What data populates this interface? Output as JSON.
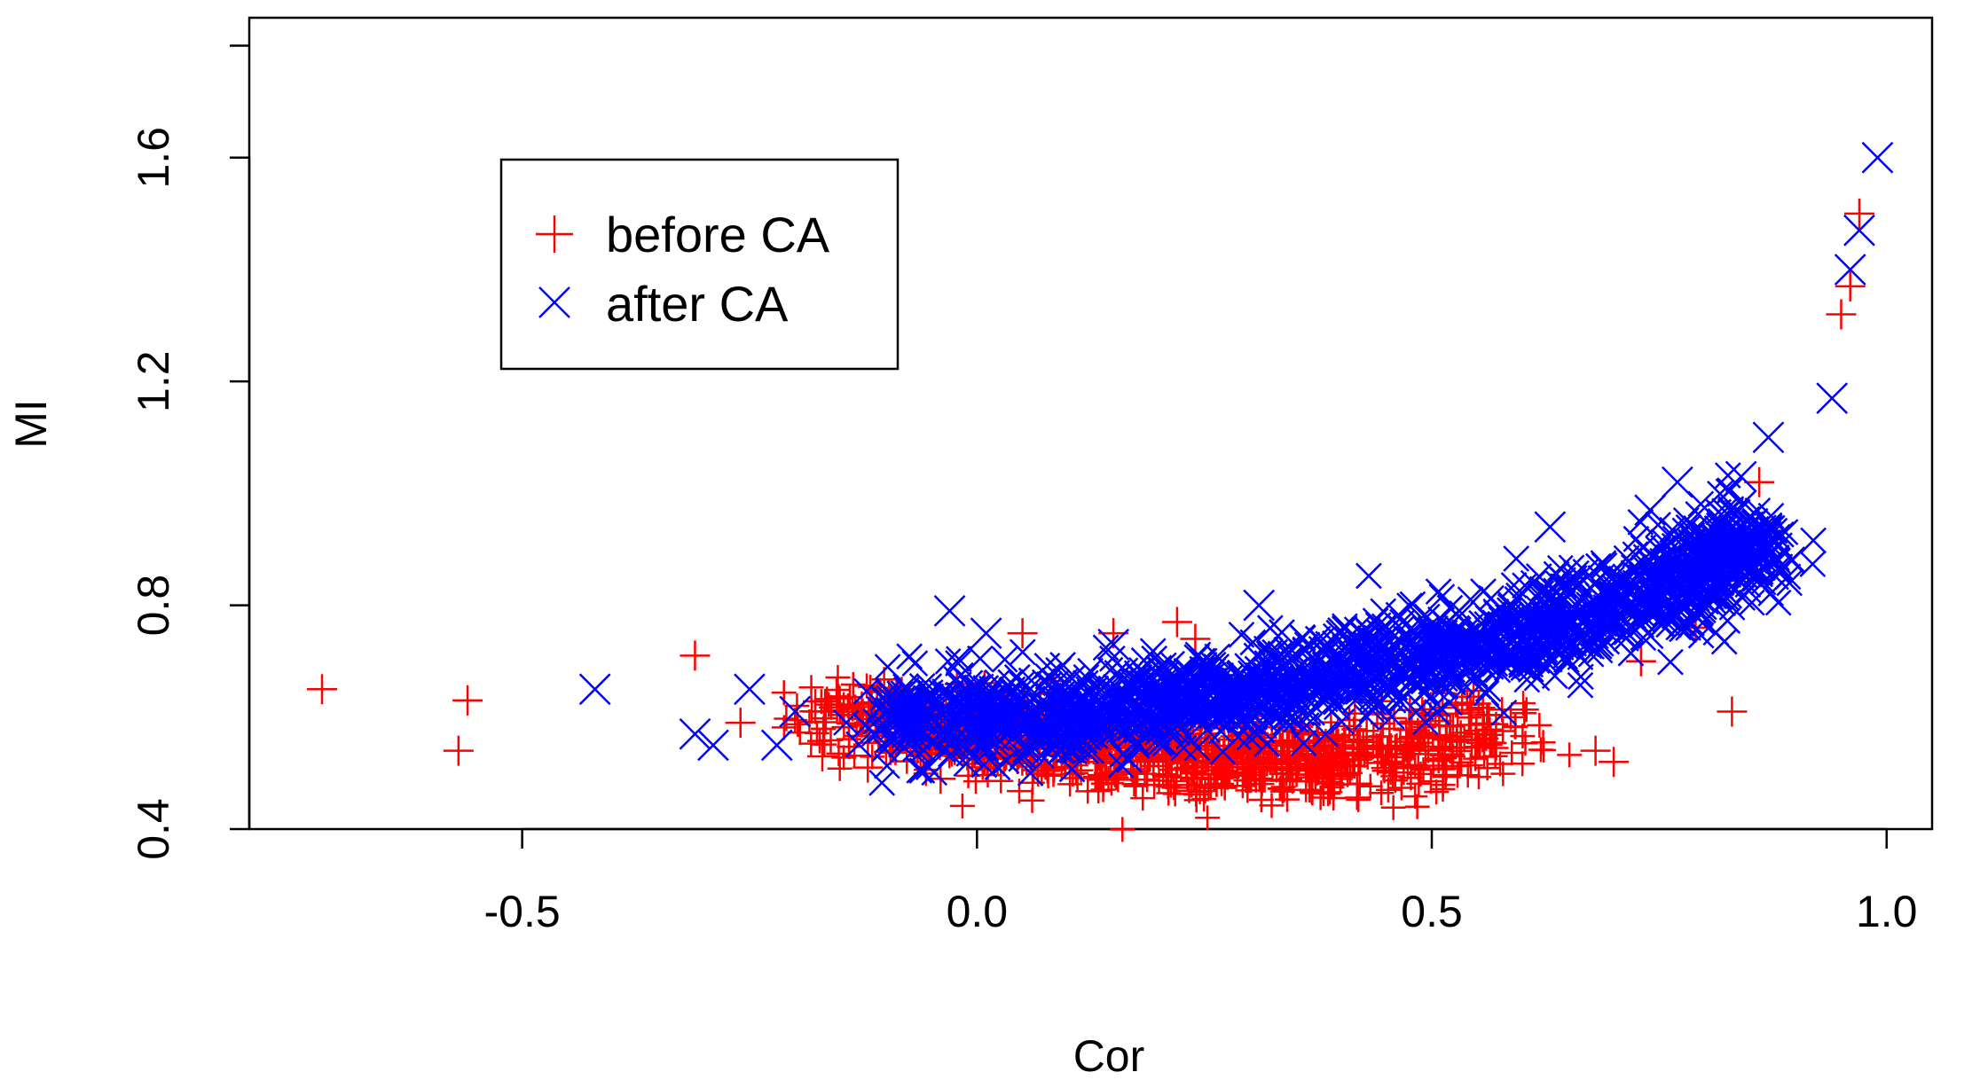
{
  "chart_data": {
    "type": "scatter",
    "xlabel": "Cor",
    "ylabel": "MI",
    "xlim": [
      -0.8,
      1.05
    ],
    "ylim": [
      0.4,
      1.85
    ],
    "x_ticks": [
      -0.5,
      0.0,
      0.5,
      1.0
    ],
    "x_tick_labels": [
      "-0.5",
      "0.0",
      "0.5",
      "1.0"
    ],
    "y_ticks": [
      0.4,
      0.8,
      1.2,
      1.6
    ],
    "y_tick_labels": [
      "0.4",
      "0.8",
      "1.2",
      "1.6"
    ],
    "legend_position": "top-left",
    "grid": false,
    "series": [
      {
        "name": "before CA",
        "marker": "plus",
        "color": "#ff0000",
        "outliers": [
          [
            -0.72,
            0.65
          ],
          [
            -0.57,
            0.54
          ],
          [
            -0.56,
            0.63
          ],
          [
            -0.31,
            0.71
          ],
          [
            -0.26,
            0.59
          ],
          [
            -0.17,
            0.53
          ],
          [
            -0.12,
            0.51
          ],
          [
            -0.04,
            0.49
          ],
          [
            0.05,
            0.75
          ],
          [
            0.15,
            0.75
          ],
          [
            0.22,
            0.77
          ],
          [
            0.24,
            0.74
          ],
          [
            0.68,
            0.54
          ],
          [
            0.7,
            0.52
          ],
          [
            0.73,
            0.7
          ],
          [
            0.79,
            0.76
          ],
          [
            0.83,
            0.61
          ],
          [
            0.86,
            1.02
          ],
          [
            0.95,
            1.32
          ],
          [
            0.96,
            1.37
          ],
          [
            0.97,
            1.5
          ]
        ],
        "cluster_centroids": [
          [
            -0.14,
            0.6
          ],
          [
            -0.08,
            0.58
          ],
          [
            -0.02,
            0.58
          ],
          [
            0.02,
            0.56
          ],
          [
            0.06,
            0.56
          ],
          [
            0.1,
            0.55
          ],
          [
            0.14,
            0.54
          ],
          [
            0.18,
            0.54
          ],
          [
            0.22,
            0.53
          ],
          [
            0.26,
            0.52
          ],
          [
            0.3,
            0.52
          ],
          [
            0.34,
            0.52
          ],
          [
            0.38,
            0.52
          ],
          [
            0.44,
            0.53
          ],
          [
            0.5,
            0.55
          ],
          [
            0.56,
            0.57
          ]
        ]
      },
      {
        "name": "after CA",
        "marker": "x",
        "color": "#0000ff",
        "outliers": [
          [
            -0.42,
            0.65
          ],
          [
            -0.31,
            0.57
          ],
          [
            -0.29,
            0.55
          ],
          [
            -0.25,
            0.65
          ],
          [
            -0.22,
            0.55
          ],
          [
            -0.2,
            0.61
          ],
          [
            -0.03,
            0.79
          ],
          [
            0.01,
            0.75
          ],
          [
            0.15,
            0.73
          ],
          [
            0.31,
            0.8
          ],
          [
            0.63,
            0.94
          ],
          [
            0.74,
            0.97
          ],
          [
            0.77,
            1.02
          ],
          [
            0.84,
            1.03
          ],
          [
            0.87,
            1.1
          ],
          [
            0.86,
            0.89
          ],
          [
            0.94,
            1.17
          ],
          [
            0.96,
            1.4
          ],
          [
            0.97,
            1.47
          ],
          [
            0.99,
            1.6
          ]
        ],
        "cluster_centroids": [
          [
            -0.06,
            0.6
          ],
          [
            0.02,
            0.6
          ],
          [
            0.1,
            0.6
          ],
          [
            0.18,
            0.62
          ],
          [
            0.26,
            0.64
          ],
          [
            0.34,
            0.66
          ],
          [
            0.42,
            0.69
          ],
          [
            0.5,
            0.71
          ],
          [
            0.58,
            0.74
          ],
          [
            0.66,
            0.78
          ],
          [
            0.74,
            0.82
          ],
          [
            0.8,
            0.86
          ],
          [
            0.84,
            0.9
          ]
        ]
      }
    ]
  }
}
